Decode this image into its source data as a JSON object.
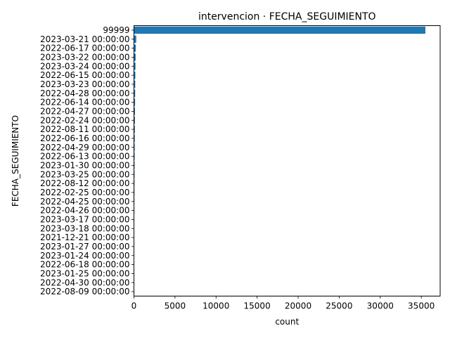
{
  "chart_data": {
    "type": "bar",
    "orientation": "horizontal",
    "title": "intervencion · FECHA_SEGUIMIENTO",
    "xlabel": "count",
    "ylabel": "FECHA_SEGUIMIENTO",
    "xlim": [
      0,
      37300
    ],
    "xticks": [
      0,
      5000,
      10000,
      15000,
      20000,
      25000,
      30000,
      35000
    ],
    "xtick_labels": [
      "0",
      "5000",
      "10000",
      "15000",
      "20000",
      "25000",
      "30000",
      "35000"
    ],
    "grid": false,
    "bar_color": "#1f77b4",
    "categories": [
      "99999",
      "2023-03-21 00:00:00",
      "2022-06-17 00:00:00",
      "2023-03-22 00:00:00",
      "2023-03-24 00:00:00",
      "2022-06-15 00:00:00",
      "2023-03-23 00:00:00",
      "2022-04-28 00:00:00",
      "2022-06-14 00:00:00",
      "2022-04-27 00:00:00",
      "2022-02-24 00:00:00",
      "2022-08-11 00:00:00",
      "2022-06-16 00:00:00",
      "2022-04-29 00:00:00",
      "2022-06-13 00:00:00",
      "2023-01-30 00:00:00",
      "2023-03-25 00:00:00",
      "2022-08-12 00:00:00",
      "2022-02-25 00:00:00",
      "2022-04-25 00:00:00",
      "2022-04-26 00:00:00",
      "2023-03-17 00:00:00",
      "2023-03-18 00:00:00",
      "2021-12-21 00:00:00",
      "2023-01-27 00:00:00",
      "2023-01-24 00:00:00",
      "2022-06-18 00:00:00",
      "2023-01-25 00:00:00",
      "2022-04-30 00:00:00",
      "2022-08-09 00:00:00"
    ],
    "values": [
      35500,
      280,
      230,
      210,
      190,
      170,
      160,
      150,
      140,
      130,
      120,
      110,
      100,
      90,
      80,
      75,
      70,
      65,
      60,
      55,
      50,
      45,
      40,
      35,
      30,
      25,
      20,
      15,
      12,
      10
    ]
  }
}
